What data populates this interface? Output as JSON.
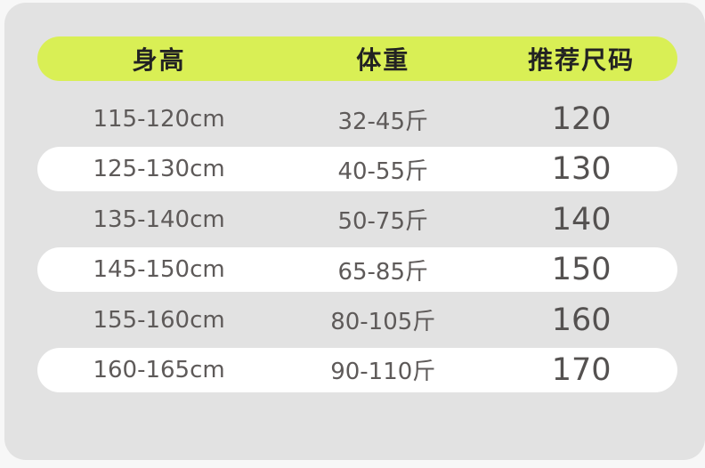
{
  "chart_data": {
    "type": "table",
    "title": "",
    "columns": [
      "身高",
      "体重",
      "推荐尺码"
    ],
    "rows": [
      [
        "115-120cm",
        "32-45斤",
        "120"
      ],
      [
        "125-130cm",
        "40-55斤",
        "130"
      ],
      [
        "135-140cm",
        "50-75斤",
        "140"
      ],
      [
        "145-150cm",
        "65-85斤",
        "150"
      ],
      [
        "155-160cm",
        "80-105斤",
        "160"
      ],
      [
        "160-165cm",
        "90-110斤",
        "170"
      ]
    ]
  },
  "table": {
    "headers": {
      "height": "身高",
      "weight": "体重",
      "size": "推荐尺码"
    },
    "rows": [
      {
        "height": "115-120cm",
        "weight": "32-45斤",
        "size": "120"
      },
      {
        "height": "125-130cm",
        "weight": "40-55斤",
        "size": "130"
      },
      {
        "height": "135-140cm",
        "weight": "50-75斤",
        "size": "140"
      },
      {
        "height": "145-150cm",
        "weight": "65-85斤",
        "size": "150"
      },
      {
        "height": "155-160cm",
        "weight": "80-105斤",
        "size": "160"
      },
      {
        "height": "160-165cm",
        "weight": "90-110斤",
        "size": "170"
      }
    ]
  },
  "colors": {
    "page_bg": "#f7f7f7",
    "panel_bg": "#e2e2e2",
    "header_bg": "#d9ef55",
    "row_alt_bg": "#ffffff",
    "header_text": "#222222",
    "body_text": "#5e5a59",
    "size_text": "#545150"
  }
}
